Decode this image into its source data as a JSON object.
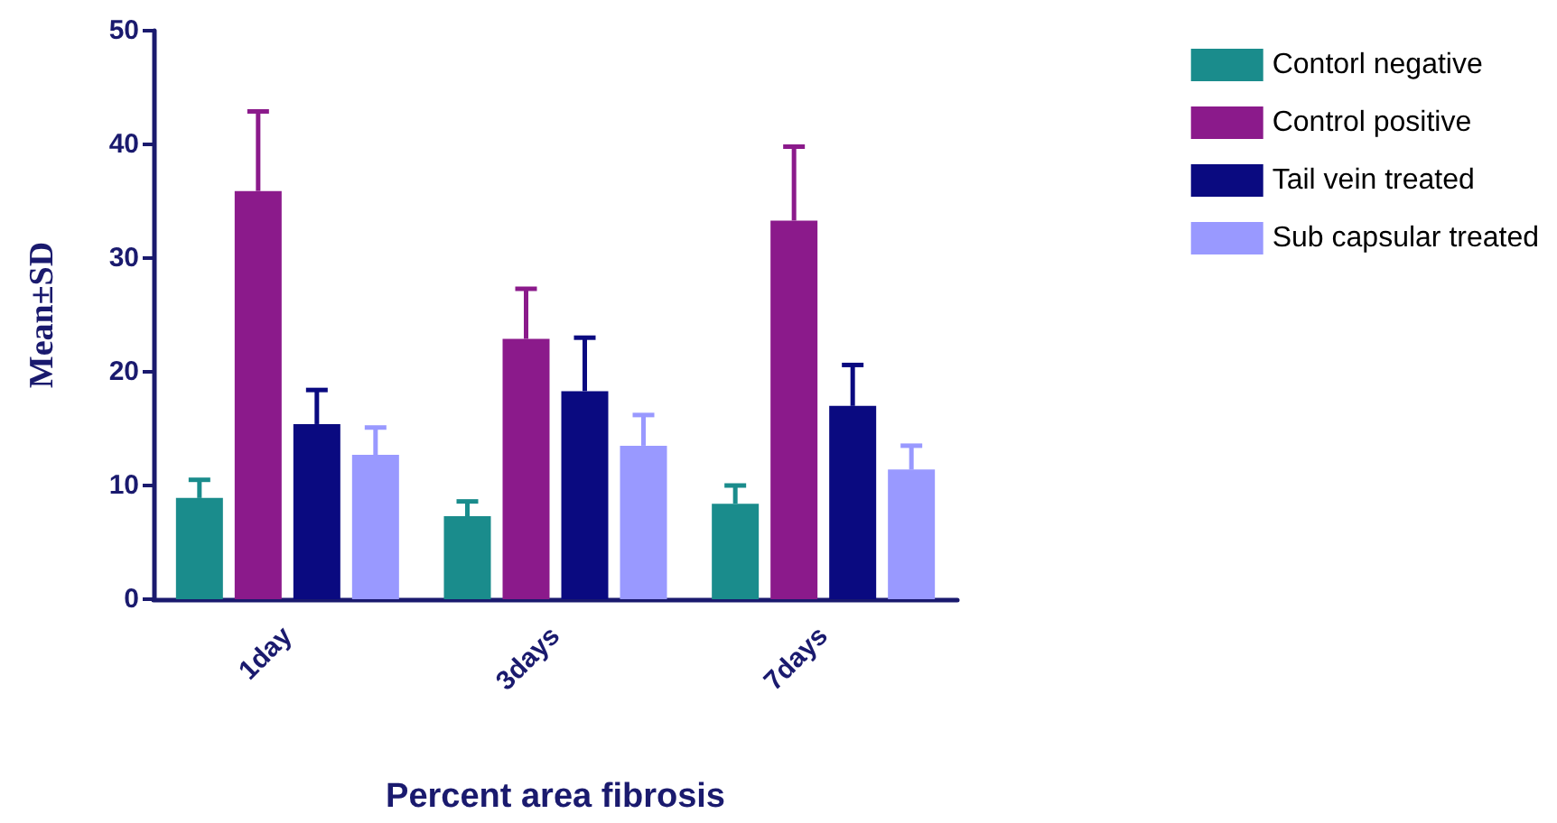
{
  "chart_data": {
    "type": "bar",
    "xlabel": "Percent area fibrosis",
    "ylabel": "Mean±SD",
    "categories": [
      "1day",
      "3days",
      "7days"
    ],
    "ylim": [
      0,
      50
    ],
    "yticks": [
      0,
      10,
      20,
      30,
      40,
      50
    ],
    "grid": false,
    "legend": "top right",
    "series": [
      {
        "name": "Contorl negative",
        "color": "#1a8c8c",
        "values": [
          8.9,
          7.3,
          8.4
        ],
        "errors": [
          1.6,
          1.3,
          1.6
        ]
      },
      {
        "name": "Control positive",
        "color": "#8b1a8b",
        "values": [
          35.9,
          22.9,
          33.3
        ],
        "errors": [
          7.0,
          4.4,
          6.5
        ]
      },
      {
        "name": "Tail vein treated",
        "color": "#0a0a80",
        "values": [
          15.4,
          18.3,
          17.0
        ],
        "errors": [
          3.0,
          4.7,
          3.6
        ]
      },
      {
        "name": "Sub capsular treated",
        "color": "#9999ff",
        "values": [
          12.7,
          13.5,
          11.4
        ],
        "errors": [
          2.4,
          2.7,
          2.1
        ]
      }
    ]
  }
}
